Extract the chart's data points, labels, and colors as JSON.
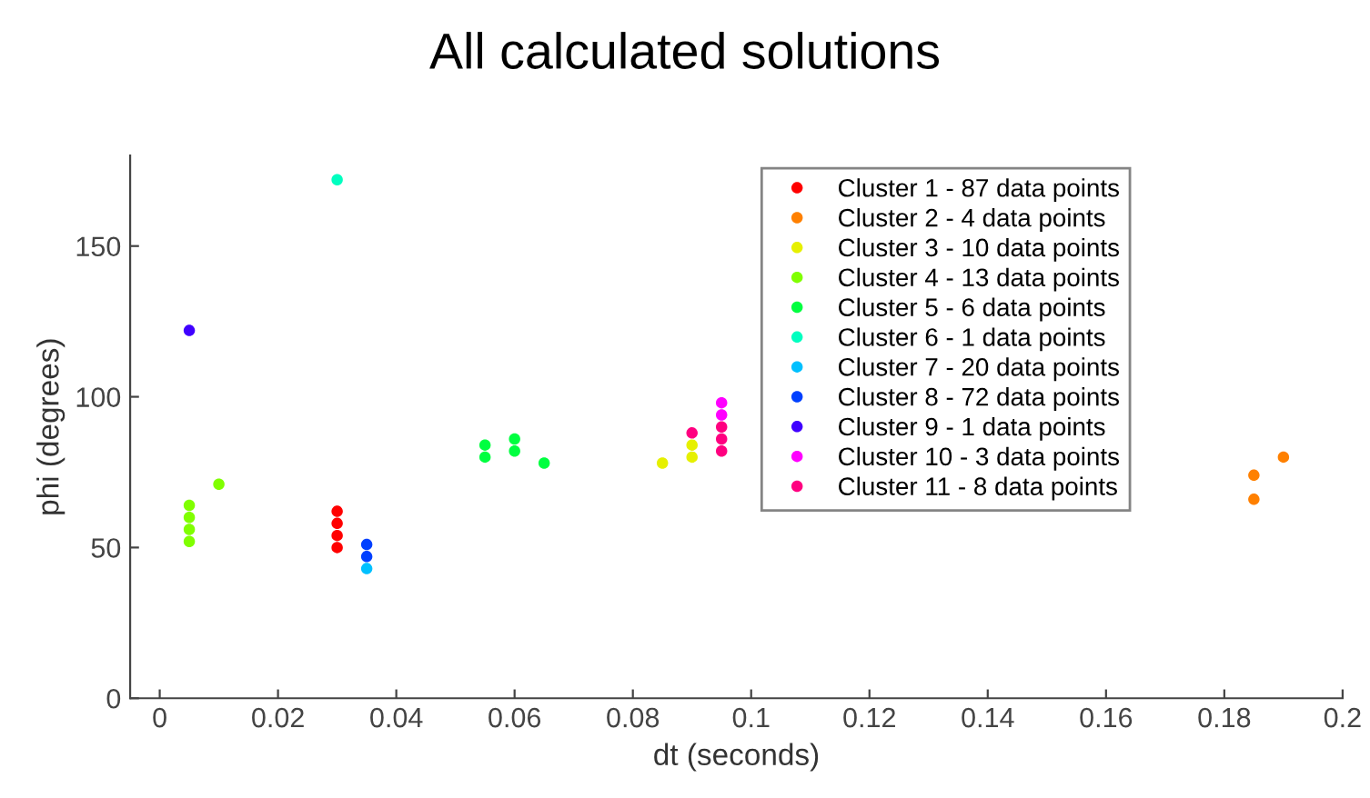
{
  "chart_data": {
    "type": "scatter",
    "title": "All calculated solutions",
    "xlabel": "dt (seconds)",
    "ylabel": "phi (degrees)",
    "xlim": [
      -0.005,
      0.2
    ],
    "xticks": [
      0,
      0.02,
      0.04,
      0.06,
      0.08,
      0.1,
      0.12,
      0.14,
      0.16,
      0.18,
      0.2
    ],
    "ylim": [
      0,
      180
    ],
    "yticks": [
      0,
      50,
      100,
      150
    ],
    "grid": false,
    "legend": "top right",
    "marker": "circle",
    "series": [
      {
        "name": "Cluster 1 - 87 data points",
        "color": "#ff0000",
        "x": [
          0.03,
          0.03,
          0.03,
          0.03
        ],
        "values": [
          50,
          54,
          58,
          62
        ]
      },
      {
        "name": "Cluster 2 - 4 data points",
        "color": "#ff8000",
        "x": [
          0.185,
          0.185,
          0.19
        ],
        "values": [
          66,
          74,
          80
        ]
      },
      {
        "name": "Cluster 3 - 10 data points",
        "color": "#e6f000",
        "x": [
          0.085,
          0.09,
          0.09
        ],
        "values": [
          78,
          80,
          84
        ]
      },
      {
        "name": "Cluster 4 - 13 data points",
        "color": "#80ff00",
        "x": [
          0.005,
          0.005,
          0.005,
          0.005,
          0.01
        ],
        "values": [
          52,
          56,
          60,
          64,
          71
        ]
      },
      {
        "name": "Cluster 5 - 6 data points",
        "color": "#00ff40",
        "x": [
          0.055,
          0.055,
          0.06,
          0.06,
          0.065
        ],
        "values": [
          80,
          84,
          82,
          86,
          78
        ]
      },
      {
        "name": "Cluster 6 - 1 data points",
        "color": "#00ffc0",
        "x": [
          0.03
        ],
        "values": [
          172
        ]
      },
      {
        "name": "Cluster 7 - 20 data points",
        "color": "#00c0ff",
        "x": [
          0.035
        ],
        "values": [
          43
        ]
      },
      {
        "name": "Cluster 8 - 72 data points",
        "color": "#0040ff",
        "x": [
          0.035,
          0.035
        ],
        "values": [
          47,
          51
        ]
      },
      {
        "name": "Cluster 9 - 1 data points",
        "color": "#4000ff",
        "x": [
          0.005
        ],
        "values": [
          122
        ]
      },
      {
        "name": "Cluster 10 - 3 data points",
        "color": "#ff00ff",
        "x": [
          0.095,
          0.095
        ],
        "values": [
          94,
          98
        ]
      },
      {
        "name": "Cluster 11 - 8 data points",
        "color": "#ff0080",
        "x": [
          0.09,
          0.095,
          0.095,
          0.095
        ],
        "values": [
          88,
          82,
          86,
          90
        ]
      }
    ]
  }
}
